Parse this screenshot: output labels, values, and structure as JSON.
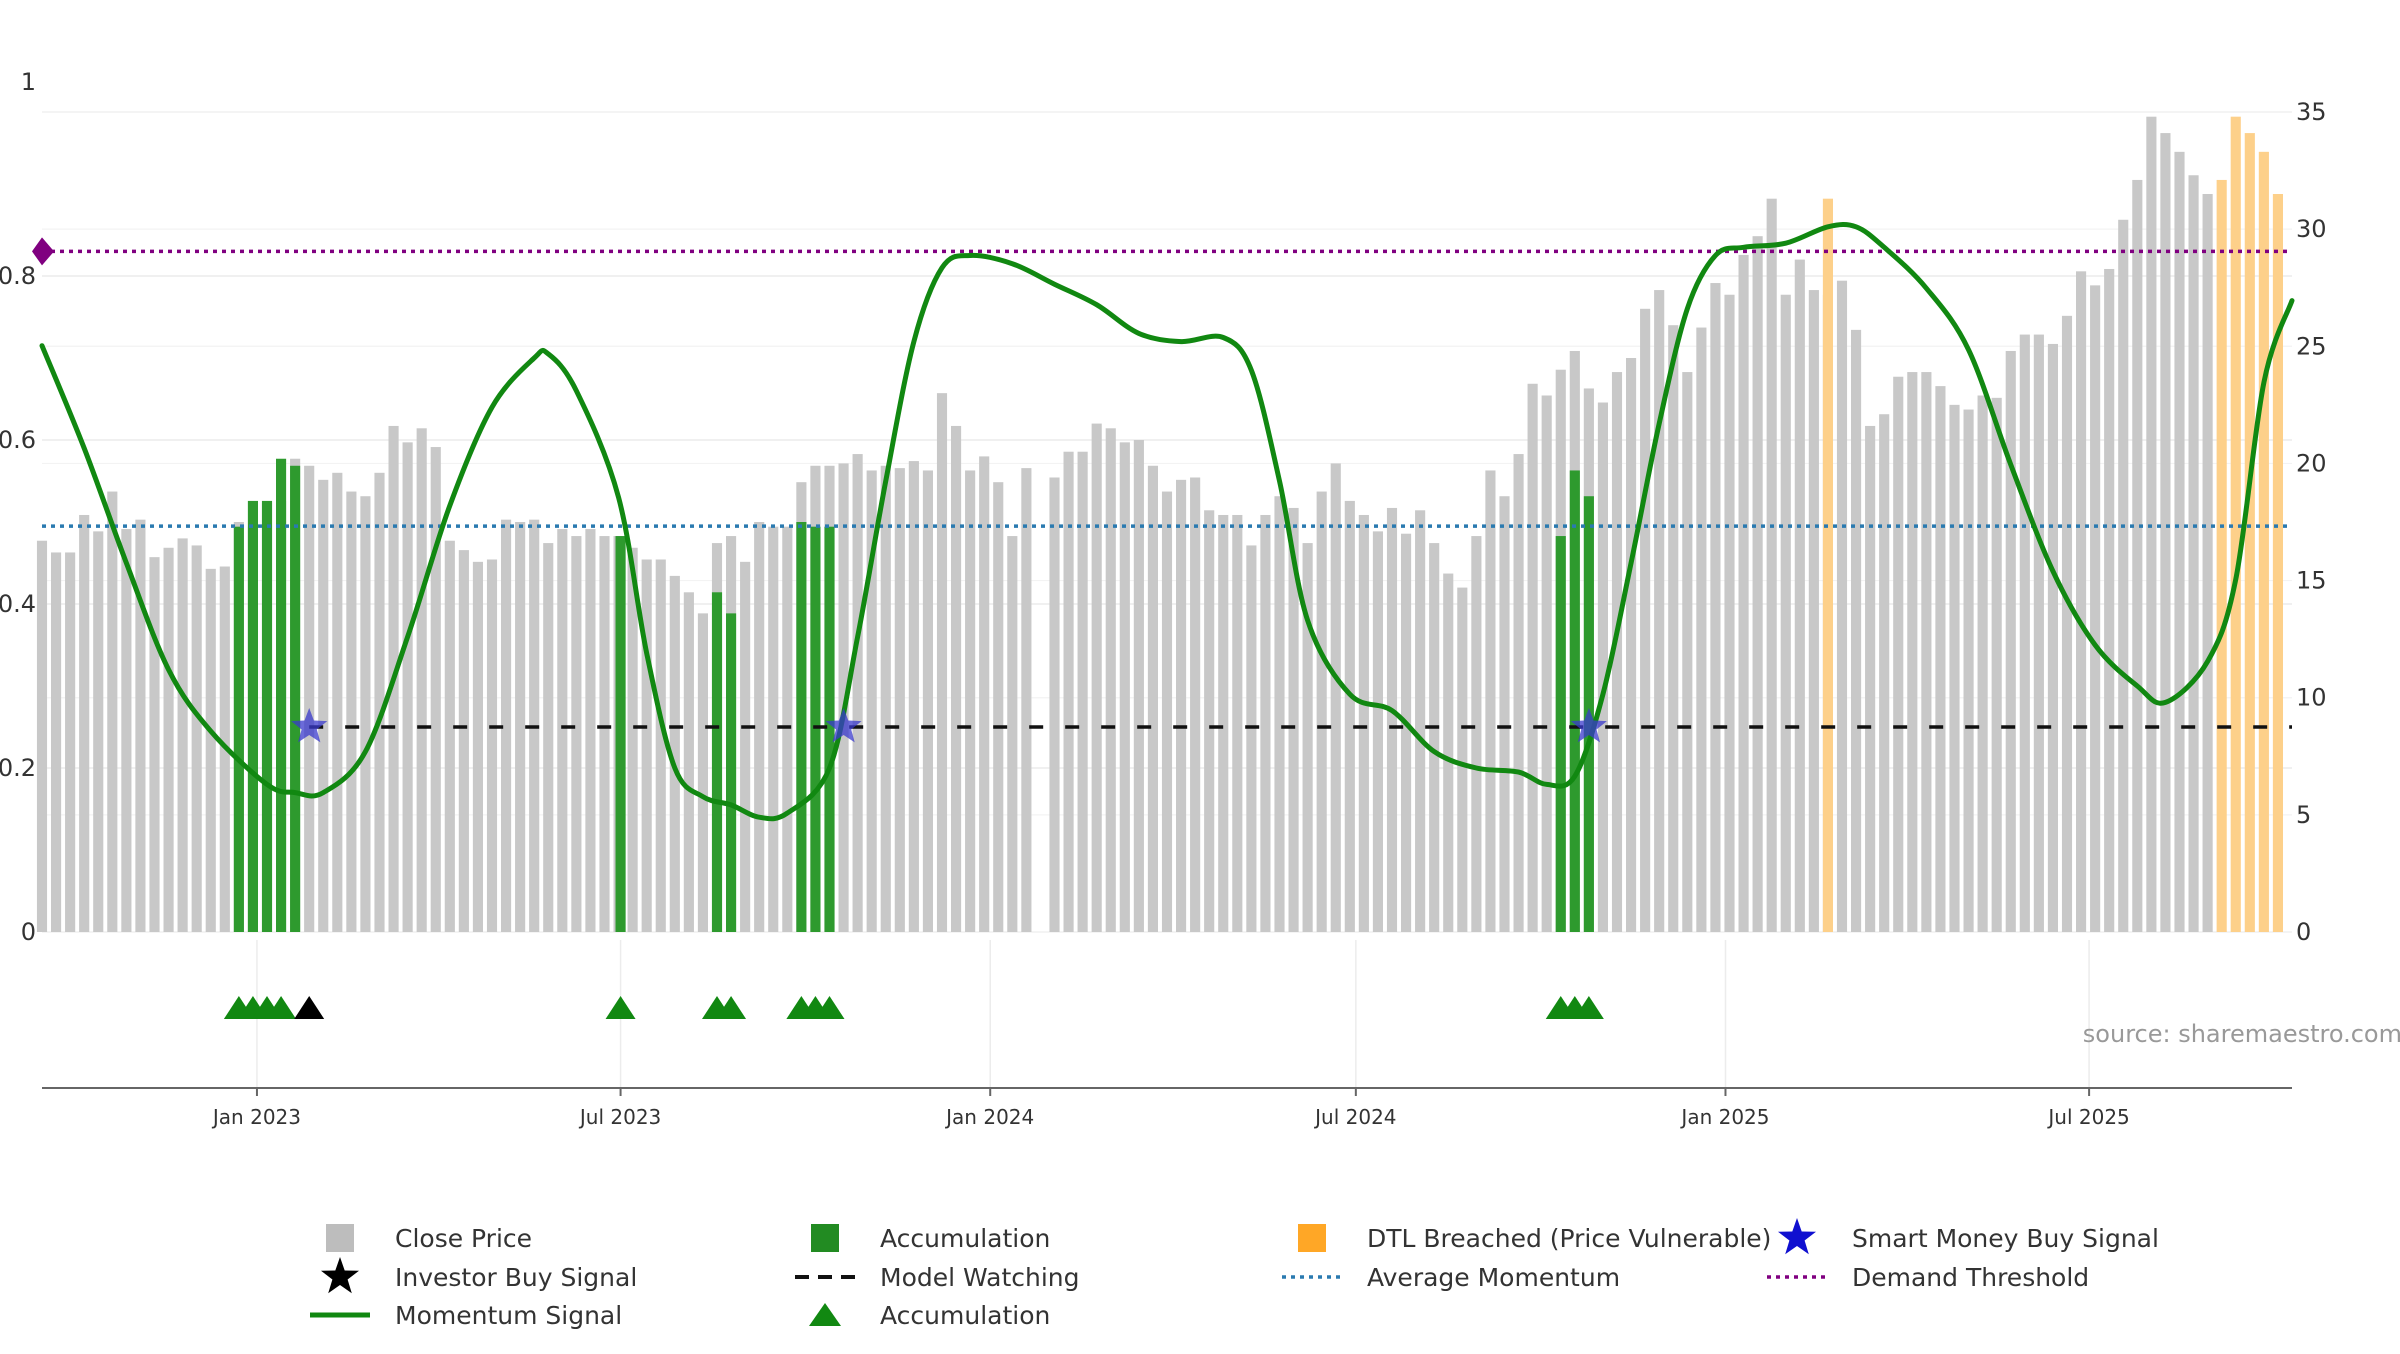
{
  "chart_data": {
    "type": "bar",
    "x_ticks": [
      "Jan 2023",
      "Jul 2023",
      "Jan 2024",
      "Jul 2024",
      "Jan 2025",
      "Jul 2025"
    ],
    "x_tick_dates": [
      "2023-01-01",
      "2023-07-01",
      "2024-01-01",
      "2024-07-01",
      "2025-01-01",
      "2025-07-01"
    ],
    "x_range": [
      "2022-09-16",
      "2025-10-10"
    ],
    "left_axis": {
      "ticks": [
        "0",
        "0.2",
        "0.4",
        "0.6",
        "0.8",
        "1"
      ],
      "values": [
        0,
        0.2,
        0.4,
        0.6,
        0.8,
        1
      ],
      "range": [
        0,
        1.0
      ]
    },
    "right_axis": {
      "ticks": [
        "0",
        "5",
        "10",
        "15",
        "20",
        "25",
        "30",
        "35"
      ],
      "values": [
        0,
        5,
        10,
        15,
        20,
        25,
        30,
        35
      ],
      "range": [
        0,
        35
      ]
    },
    "close_price": {
      "name": "Close Price",
      "start_date": "2022-09-16",
      "values": [
        16.7,
        16.2,
        16.2,
        17.8,
        17.1,
        18.8,
        17.2,
        17.6,
        16.0,
        16.4,
        16.8,
        16.5,
        15.5,
        15.6,
        17.5,
        17.3,
        18.3,
        18.4,
        20.2,
        19.9,
        19.3,
        19.6,
        18.8,
        18.6,
        19.6,
        21.6,
        20.9,
        21.5,
        20.7,
        16.7,
        16.3,
        15.8,
        15.9,
        17.6,
        17.5,
        17.6,
        16.6,
        17.2,
        16.9,
        17.2,
        16.9,
        16.9,
        16.4,
        15.9,
        15.9,
        15.2,
        14.5,
        13.6,
        16.6,
        16.9,
        15.8,
        17.5,
        17.3,
        17.3,
        19.2,
        19.9,
        19.9,
        20.0,
        20.4,
        19.7,
        19.9,
        19.8,
        20.1,
        19.7,
        23.0,
        21.6,
        19.7,
        20.3,
        19.2,
        16.9,
        19.8,
        0,
        19.4,
        20.5,
        20.5,
        21.7,
        21.5,
        20.9,
        21.0,
        19.9,
        18.8,
        19.3,
        19.4,
        18.0,
        17.8,
        17.8,
        16.5,
        17.8,
        18.6,
        18.1,
        16.6,
        18.8,
        20.0,
        18.4,
        17.8,
        17.1,
        18.1,
        17.0,
        18.0,
        16.6,
        15.3,
        14.7,
        16.9,
        19.7,
        18.6,
        20.4,
        23.4,
        22.9,
        24.0,
        24.8,
        23.2,
        22.6,
        23.9,
        24.5,
        26.6,
        27.4,
        25.9,
        23.9,
        25.8,
        27.7,
        27.2,
        28.9,
        29.7,
        31.3,
        27.2,
        28.7,
        27.4,
        27.2,
        27.8,
        25.7,
        21.6,
        22.1,
        23.7,
        23.9,
        23.9,
        23.3,
        22.5,
        22.3,
        22.9,
        22.8,
        24.8,
        25.5,
        25.5,
        25.1,
        26.3,
        28.2,
        27.6,
        28.3,
        30.4,
        32.1,
        34.8,
        34.1,
        33.3,
        32.3,
        31.5
      ]
    },
    "accumulation_bars": [
      {
        "date": "2022-12-23",
        "value": 17.3
      },
      {
        "date": "2022-12-30",
        "value": 18.4
      },
      {
        "date": "2023-01-06",
        "value": 18.4
      },
      {
        "date": "2023-01-13",
        "value": 20.2
      },
      {
        "date": "2023-01-20",
        "value": 19.9
      },
      {
        "date": "2023-07-01",
        "value": 16.9
      },
      {
        "date": "2023-08-18",
        "value": 14.5
      },
      {
        "date": "2023-08-25",
        "value": 13.6
      },
      {
        "date": "2023-09-29",
        "value": 17.5
      },
      {
        "date": "2023-10-06",
        "value": 17.3
      },
      {
        "date": "2023-10-13",
        "value": 17.3
      },
      {
        "date": "2024-10-11",
        "value": 16.9
      },
      {
        "date": "2024-10-18",
        "value": 19.7
      },
      {
        "date": "2024-10-25",
        "value": 18.6
      }
    ],
    "dtl_breached_bars": [
      {
        "date": "2025-02-21",
        "value": 31.3
      },
      {
        "date": "2025-09-05",
        "value": 32.1
      },
      {
        "date": "2025-09-12",
        "value": 34.8
      },
      {
        "date": "2025-09-19",
        "value": 34.1
      },
      {
        "date": "2025-09-26",
        "value": 33.3
      },
      {
        "date": "2025-10-03",
        "value": 31.5
      }
    ],
    "momentum_signal": {
      "name": "Momentum Signal",
      "points": [
        [
          "2022-09-16",
          0.715
        ],
        [
          "2022-10-07",
          0.59
        ],
        [
          "2022-10-28",
          0.45
        ],
        [
          "2022-11-18",
          0.32
        ],
        [
          "2022-12-09",
          0.245
        ],
        [
          "2023-01-06",
          0.18
        ],
        [
          "2023-01-20",
          0.17
        ],
        [
          "2023-02-03",
          0.17
        ],
        [
          "2023-02-24",
          0.22
        ],
        [
          "2023-03-17",
          0.36
        ],
        [
          "2023-04-07",
          0.52
        ],
        [
          "2023-04-28",
          0.64
        ],
        [
          "2023-05-19",
          0.7
        ],
        [
          "2023-05-26",
          0.705
        ],
        [
          "2023-06-09",
          0.66
        ],
        [
          "2023-06-30",
          0.53
        ],
        [
          "2023-07-14",
          0.34
        ],
        [
          "2023-07-28",
          0.2
        ],
        [
          "2023-08-11",
          0.165
        ],
        [
          "2023-08-25",
          0.155
        ],
        [
          "2023-09-08",
          0.14
        ],
        [
          "2023-09-22",
          0.145
        ],
        [
          "2023-10-13",
          0.2
        ],
        [
          "2023-10-27",
          0.36
        ],
        [
          "2023-11-10",
          0.55
        ],
        [
          "2023-11-24",
          0.72
        ],
        [
          "2023-12-08",
          0.81
        ],
        [
          "2023-12-22",
          0.825
        ],
        [
          "2024-01-12",
          0.815
        ],
        [
          "2024-02-02",
          0.79
        ],
        [
          "2024-02-23",
          0.765
        ],
        [
          "2024-03-15",
          0.73
        ],
        [
          "2024-04-05",
          0.72
        ],
        [
          "2024-04-26",
          0.725
        ],
        [
          "2024-05-10",
          0.685
        ],
        [
          "2024-05-24",
          0.55
        ],
        [
          "2024-06-07",
          0.38
        ],
        [
          "2024-06-28",
          0.29
        ],
        [
          "2024-07-19",
          0.27
        ],
        [
          "2024-08-09",
          0.22
        ],
        [
          "2024-08-30",
          0.2
        ],
        [
          "2024-09-20",
          0.195
        ],
        [
          "2024-10-04",
          0.18
        ],
        [
          "2024-10-18",
          0.19
        ],
        [
          "2024-11-01",
          0.29
        ],
        [
          "2024-11-15",
          0.45
        ],
        [
          "2024-11-29",
          0.62
        ],
        [
          "2024-12-13",
          0.76
        ],
        [
          "2024-12-27",
          0.825
        ],
        [
          "2025-01-10",
          0.835
        ],
        [
          "2025-01-31",
          0.84
        ],
        [
          "2025-02-21",
          0.86
        ],
        [
          "2025-03-07",
          0.86
        ],
        [
          "2025-03-21",
          0.835
        ],
        [
          "2025-04-11",
          0.785
        ],
        [
          "2025-05-02",
          0.71
        ],
        [
          "2025-05-23",
          0.57
        ],
        [
          "2025-06-13",
          0.44
        ],
        [
          "2025-07-04",
          0.35
        ],
        [
          "2025-07-25",
          0.3
        ],
        [
          "2025-08-08",
          0.28
        ],
        [
          "2025-08-29",
          0.33
        ],
        [
          "2025-09-12",
          0.43
        ],
        [
          "2025-09-26",
          0.67
        ],
        [
          "2025-10-10",
          0.77
        ]
      ]
    },
    "model_watching": {
      "name": "Model Watching",
      "value": 0.25,
      "from": "2023-01-27",
      "to": "2025-10-10"
    },
    "average_momentum": {
      "name": "Average Momentum",
      "value": 0.495
    },
    "demand_threshold": {
      "name": "Demand Threshold",
      "value": 0.83
    },
    "smart_money_signals": [
      {
        "date": "2023-01-27",
        "value": 0.25
      },
      {
        "date": "2023-10-20",
        "value": 0.25
      },
      {
        "date": "2024-10-25",
        "value": 0.25
      }
    ],
    "accumulation_markers": [
      "2022-12-23",
      "2022-12-30",
      "2023-01-06",
      "2023-01-13",
      "2023-07-01",
      "2023-08-18",
      "2023-08-25",
      "2023-09-29",
      "2023-10-06",
      "2023-10-13",
      "2024-10-11",
      "2024-10-18",
      "2024-10-25"
    ],
    "investor_buy_signals": [
      "2023-01-27"
    ],
    "demand_marker": {
      "date": "2022-09-16",
      "value": 0.83
    },
    "source_text": "source: sharemaestro.com",
    "legend": [
      {
        "label": "Close Price",
        "symbol": "square",
        "color": "#bdbdbd"
      },
      {
        "label": "Accumulation",
        "symbol": "square",
        "color": "#228b22"
      },
      {
        "label": "DTL Breached (Price Vulnerable)",
        "symbol": "square",
        "color": "#ffa726"
      },
      {
        "label": "Smart Money Buy Signal",
        "symbol": "star",
        "color": "#1010d0"
      },
      {
        "label": "Investor Buy Signal",
        "symbol": "star",
        "color": "#000000"
      },
      {
        "label": "Model Watching",
        "symbol": "dash-line",
        "color": "#111111"
      },
      {
        "label": "Average Momentum",
        "symbol": "dot-line",
        "color": "#2a7ab0"
      },
      {
        "label": "Demand Threshold",
        "symbol": "dot-line",
        "color": "#800080"
      },
      {
        "label": "Momentum Signal",
        "symbol": "solid-line",
        "color": "#118811"
      },
      {
        "label": "Accumulation",
        "symbol": "triangle",
        "color": "#118811"
      }
    ]
  },
  "colors": {
    "close_price": "#c8c8c8",
    "accumulation": "#2e9a2e",
    "dtl_breached": "#fdd08a",
    "momentum": "#118811",
    "average_momentum": "#2a7ab0",
    "demand_threshold": "#800080",
    "smart_money": "#3a3acc",
    "investor": "#000000",
    "axis_text": "#333333",
    "grid": "#ececec",
    "source_text": "#999999"
  }
}
